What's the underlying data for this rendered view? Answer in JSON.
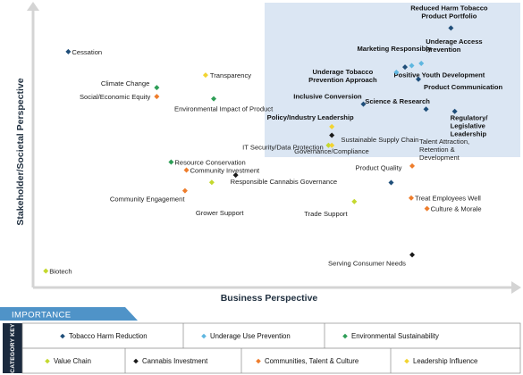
{
  "chart_data": {
    "type": "scatter",
    "x_axis_title": "Business Perspective",
    "y_axis_title": "Stakeholder/Societal Perspective",
    "band_label": "IMPORTANCE",
    "key_label": "CATEGORY KEY",
    "categories": [
      {
        "id": "thr",
        "name": "Tobacco Harm Reduction",
        "color": "#1f4e79"
      },
      {
        "id": "uup",
        "name": "Underage Use Prevention",
        "color": "#5fb7e0"
      },
      {
        "id": "env",
        "name": "Environmental Sustainability",
        "color": "#2e9e57"
      },
      {
        "id": "vch",
        "name": "Value Chain",
        "color": "#c4d82e"
      },
      {
        "id": "can",
        "name": "Cannabis Investment",
        "color": "#1a1a1a"
      },
      {
        "id": "com",
        "name": "Communities, Talent & Culture",
        "color": "#ee7d2c"
      },
      {
        "id": "lead",
        "name": "Leadership Influence",
        "color": "#f2d431"
      }
    ],
    "points": [
      {
        "label": "Reduced Harm Tobacco Product Portfolio",
        "lines": [
          "Reduced Harm Tobacco",
          "Product Portfolio"
        ],
        "cat": "thr",
        "bold": true,
        "x": 0.868,
        "y": 0.925
      },
      {
        "label": "Marketing Responsibly",
        "lines": [
          "Marketing Responsibly"
        ],
        "cat": "thr",
        "bold": true,
        "x": 0.772,
        "y": 0.785
      },
      {
        "label": "Underage Access Prevention",
        "lines": [
          "Underage Access",
          "Prevention"
        ],
        "cat": "uup",
        "bold": true,
        "x": 0.806,
        "y": 0.798
      },
      {
        "label": "Positive Youth Development",
        "lines": [
          "Positive Youth Development"
        ],
        "cat": "uup",
        "bold": true,
        "x": 0.786,
        "y": 0.79
      },
      {
        "label": "Underage Tobacco Prevention Approach",
        "lines": [
          "Underage Tobacco",
          "Prevention Approach"
        ],
        "cat": "uup",
        "bold": true,
        "x": 0.754,
        "y": 0.766
      },
      {
        "label": "Product Communication",
        "lines": [
          "Product Communication"
        ],
        "cat": "thr",
        "bold": true,
        "x": 0.8,
        "y": 0.741
      },
      {
        "label": "Inclusive Conversion",
        "lines": [
          "Inclusive Conversion"
        ],
        "cat": "thr",
        "bold": true,
        "x": 0.685,
        "y": 0.652
      },
      {
        "label": "Science & Research",
        "lines": [
          "Science & Research"
        ],
        "cat": "thr",
        "bold": true,
        "x": 0.816,
        "y": 0.634
      },
      {
        "label": "Regulatory/Legislative Leadership",
        "lines": [
          "Regulatory/",
          "Legislative",
          "Leadership"
        ],
        "cat": "thr",
        "bold": true,
        "x": 0.876,
        "y": 0.626
      },
      {
        "label": "Policy/Industry Leadership",
        "lines": [
          "Policy/Industry Leadership"
        ],
        "cat": "lead",
        "bold": true,
        "x": 0.619,
        "y": 0.571
      },
      {
        "label": "Cessation",
        "lines": [
          "Cessation"
        ],
        "cat": "thr",
        "bold": false,
        "x": 0.068,
        "y": 0.84
      },
      {
        "label": "Climate Change",
        "lines": [
          "Climate Change"
        ],
        "cat": "env",
        "bold": false,
        "x": 0.253,
        "y": 0.711
      },
      {
        "label": "Social/Economic Equity",
        "lines": [
          "Social/Economic Equity"
        ],
        "cat": "com",
        "bold": false,
        "x": 0.253,
        "y": 0.679
      },
      {
        "label": "Transparency",
        "lines": [
          "Transparency"
        ],
        "cat": "lead",
        "bold": false,
        "x": 0.355,
        "y": 0.756
      },
      {
        "label": "Environmental Impact of Product",
        "lines": [
          "Environmental Impact of Product"
        ],
        "cat": "env",
        "bold": false,
        "x": 0.372,
        "y": 0.671
      },
      {
        "label": "IT Security/Data Protection",
        "lines": [
          "IT Security/Data Protection"
        ],
        "cat": "can",
        "bold": false,
        "x": 0.619,
        "y": 0.54
      },
      {
        "label": "Sustainable Supply Chain",
        "lines": [
          "Sustainable Supply Chain"
        ],
        "cat": "vch",
        "bold": false,
        "x": 0.612,
        "y": 0.504
      },
      {
        "label": "Governance/Compliance",
        "lines": [
          "Governance/Compliance"
        ],
        "cat": "lead",
        "bold": false,
        "x": 0.619,
        "y": 0.504
      },
      {
        "label": "Resource Conservation",
        "lines": [
          "Resource Conservation"
        ],
        "cat": "env",
        "bold": false,
        "x": 0.283,
        "y": 0.444
      },
      {
        "label": "Community Investment",
        "lines": [
          "Community Investment"
        ],
        "cat": "com",
        "bold": false,
        "x": 0.315,
        "y": 0.415
      },
      {
        "label": "Responsible Cannabis Governance",
        "lines": [
          "Responsible Cannabis Governance"
        ],
        "cat": "can",
        "bold": false,
        "x": 0.418,
        "y": 0.397
      },
      {
        "label": "Community Engagement",
        "lines": [
          "Community Engagement"
        ],
        "cat": "com",
        "bold": false,
        "x": 0.312,
        "y": 0.341
      },
      {
        "label": "Grower Support",
        "lines": [
          "Grower Support"
        ],
        "cat": "vch",
        "bold": false,
        "x": 0.368,
        "y": 0.371
      },
      {
        "label": "Product Quality",
        "lines": [
          "Product Quality"
        ],
        "cat": "thr",
        "bold": false,
        "x": 0.743,
        "y": 0.37
      },
      {
        "label": "Talent Attraction, Retention & Development",
        "lines": [
          "Talent Attraction,",
          "Retention &",
          "Development"
        ],
        "cat": "com",
        "bold": false,
        "x": 0.787,
        "y": 0.43
      },
      {
        "label": "Treat Employees Well",
        "lines": [
          "Treat Employees Well"
        ],
        "cat": "com",
        "bold": false,
        "x": 0.785,
        "y": 0.315
      },
      {
        "label": "Culture & Morale",
        "lines": [
          "Culture & Morale"
        ],
        "cat": "com",
        "bold": false,
        "x": 0.818,
        "y": 0.277
      },
      {
        "label": "Trade Support",
        "lines": [
          "Trade Support"
        ],
        "cat": "vch",
        "bold": false,
        "x": 0.666,
        "y": 0.302
      },
      {
        "label": "Serving Consumer Needs",
        "lines": [
          "Serving Consumer Needs"
        ],
        "cat": "can",
        "bold": false,
        "x": 0.787,
        "y": 0.111
      },
      {
        "label": "Biotech",
        "lines": [
          "Biotech"
        ],
        "cat": "vch",
        "bold": false,
        "x": 0.021,
        "y": 0.053
      }
    ]
  }
}
